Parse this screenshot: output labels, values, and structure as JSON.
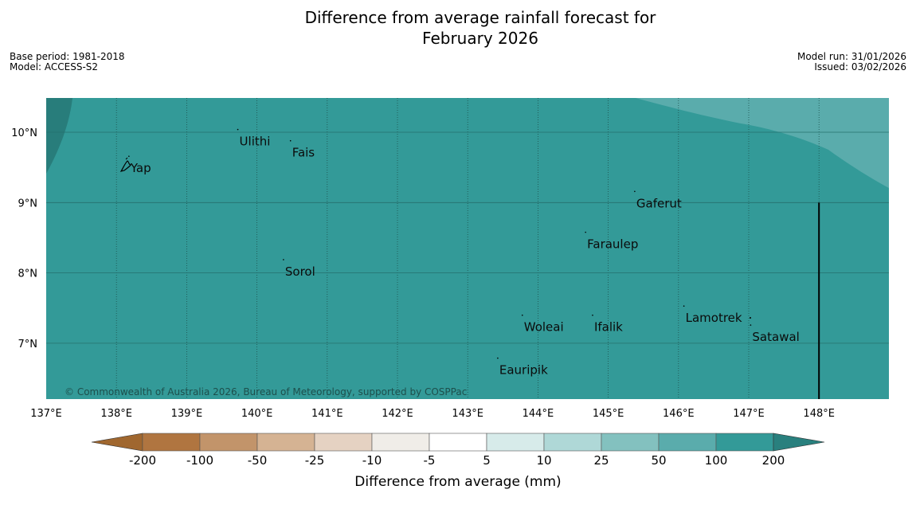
{
  "title_line1": "Difference from average rainfall forecast for",
  "title_line2": "February 2026",
  "meta": {
    "base_period": "Base period: 1981-2018",
    "model": "Model: ACCESS-S2",
    "model_run": "Model run: 31/01/2026",
    "issued": "Issued: 03/02/2026"
  },
  "copyright": "© Commonwealth of Australia 2026, Bureau of Meteorology, supported by COSPPac",
  "chart_data": {
    "type": "heatmap",
    "title": "Difference from average rainfall forecast for February 2026",
    "lon_range": [
      137,
      149
    ],
    "lat_range": [
      6.2,
      10.5
    ],
    "lon_ticks": [
      137,
      138,
      139,
      140,
      141,
      142,
      143,
      144,
      145,
      146,
      147,
      148
    ],
    "lon_tick_labels": [
      "137°E",
      "138°E",
      "139°E",
      "140°E",
      "141°E",
      "142°E",
      "143°E",
      "144°E",
      "145°E",
      "146°E",
      "147°E",
      "148°E"
    ],
    "lat_ticks": [
      10,
      9,
      8,
      7
    ],
    "lat_tick_labels": [
      "10°N",
      "9°N",
      "8°N",
      "7°N"
    ],
    "places": [
      {
        "name": "Yap",
        "lon": 138.2,
        "lat": 9.5
      },
      {
        "name": "Ulithi",
        "lon": 139.75,
        "lat": 9.88
      },
      {
        "name": "Fais",
        "lon": 140.5,
        "lat": 9.72
      },
      {
        "name": "Gaferut",
        "lon": 145.4,
        "lat": 9.0
      },
      {
        "name": "Faraulep",
        "lon": 144.7,
        "lat": 8.42
      },
      {
        "name": "Sorol",
        "lon": 140.4,
        "lat": 8.03
      },
      {
        "name": "Lamotrek",
        "lon": 146.1,
        "lat": 7.37
      },
      {
        "name": "Woleai",
        "lon": 143.8,
        "lat": 7.24
      },
      {
        "name": "Ifalik",
        "lon": 144.8,
        "lat": 7.24
      },
      {
        "name": "Satawal",
        "lon": 147.05,
        "lat": 7.1
      },
      {
        "name": "Eauripik",
        "lon": 143.45,
        "lat": 6.63
      }
    ],
    "boundary_line": {
      "lon": 148.0,
      "lat_from": 6.2,
      "lat_to": 9.0
    },
    "colorbar": {
      "title": "Difference from average (mm)",
      "tick_labels": [
        "-200",
        "-100",
        "-50",
        "-25",
        "-10",
        "-5",
        "5",
        "10",
        "25",
        "50",
        "100",
        "200"
      ],
      "colors": [
        "#b07540",
        "#c2946a",
        "#d5b393",
        "#e5d2c2",
        "#f0ede8",
        "#ffffff",
        "#d7ebea",
        "#afd8d7",
        "#83c1bf",
        "#5aacac",
        "#339a98"
      ],
      "extend_low_color": "#a0672f",
      "extend_high_color": "#29807e"
    },
    "field_colors": {
      "base": "#339a98",
      "wetter_corner": "#287d7b",
      "lighter_band": "#5aacac"
    }
  }
}
